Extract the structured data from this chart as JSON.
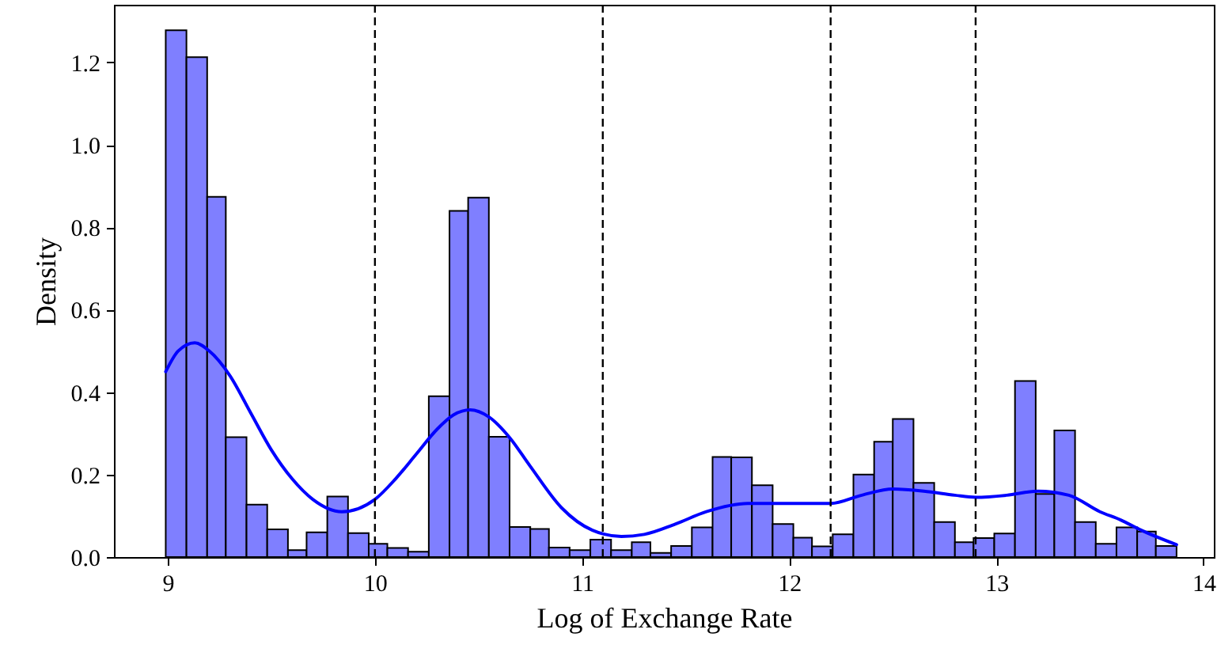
{
  "chart_data": {
    "type": "histogram",
    "xlabel": "Log of Exchange Rate",
    "ylabel": "Density",
    "color": "#7f7fff",
    "bins": [
      8.99,
      9.09,
      9.19,
      9.28,
      9.38,
      9.48,
      9.58,
      9.67,
      9.77,
      9.87,
      9.97,
      10.06,
      10.16,
      10.26,
      10.36,
      10.45,
      10.55,
      10.65,
      10.75,
      10.84,
      10.94,
      11.04,
      11.14,
      11.24,
      11.33,
      11.43,
      11.53,
      11.63,
      11.72,
      11.82,
      11.92,
      12.02,
      12.11,
      12.21,
      12.31,
      12.41,
      12.5,
      12.6,
      12.7,
      12.8,
      12.89,
      12.99,
      13.09,
      13.19,
      13.28,
      13.38,
      13.48,
      13.58,
      13.68,
      13.77,
      13.87
    ],
    "values": [
      1.278,
      1.213,
      0.874,
      0.291,
      0.127,
      0.067,
      0.017,
      0.06,
      0.147,
      0.058,
      0.032,
      0.022,
      0.013,
      0.39,
      0.84,
      0.872,
      0.292,
      0.073,
      0.068,
      0.023,
      0.017,
      0.042,
      0.017,
      0.036,
      0.01,
      0.027,
      0.072,
      0.243,
      0.242,
      0.174,
      0.08,
      0.047,
      0.026,
      0.055,
      0.2,
      0.28,
      0.335,
      0.18,
      0.085,
      0.036,
      0.046,
      0.057,
      0.427,
      0.153,
      0.307,
      0.085,
      0.032,
      0.072,
      0.062,
      0.027
    ],
    "series": [
      {
        "type": "line",
        "color": "#0000ff",
        "x": [
          8.99,
          9.05,
          9.13,
          9.2,
          9.3,
          9.4,
          9.5,
          9.6,
          9.7,
          9.84,
          10.0,
          10.1,
          10.2,
          10.3,
          10.38,
          10.46,
          10.55,
          10.65,
          10.75,
          10.9,
          11.05,
          11.19,
          11.3,
          11.45,
          11.6,
          11.8,
          12.0,
          12.2,
          12.35,
          12.5,
          12.65,
          12.8,
          12.9,
          13.05,
          13.2,
          13.35,
          13.5,
          13.6,
          13.7,
          13.87
        ],
        "values": [
          0.45,
          0.5,
          0.52,
          0.5,
          0.44,
          0.35,
          0.26,
          0.19,
          0.14,
          0.11,
          0.14,
          0.19,
          0.25,
          0.31,
          0.345,
          0.357,
          0.34,
          0.29,
          0.22,
          0.12,
          0.065,
          0.05,
          0.055,
          0.08,
          0.11,
          0.13,
          0.13,
          0.13,
          0.15,
          0.165,
          0.16,
          0.15,
          0.145,
          0.15,
          0.16,
          0.15,
          0.11,
          0.09,
          0.065,
          0.03
        ]
      }
    ],
    "ref_lines": [
      {
        "axis": "x",
        "value": 10.0,
        "color": "#000000",
        "line_style": "dashed"
      },
      {
        "axis": "x",
        "value": 11.1,
        "color": "#000000",
        "line_style": "dashed"
      },
      {
        "axis": "x",
        "value": 12.2,
        "color": "#000000",
        "line_style": "dashed"
      },
      {
        "axis": "x",
        "value": 12.9,
        "color": "#000000",
        "line_style": "dashed"
      }
    ],
    "xlim": [
      8.74,
      14.05
    ],
    "ylim": [
      0,
      1.34
    ],
    "xticks": [
      9,
      10,
      11,
      12,
      13,
      14
    ],
    "yticks": [
      {
        "value": 0,
        "label": "0.0"
      },
      0.2,
      0.4,
      0.6,
      0.8,
      {
        "value": 1,
        "label": "1.0"
      },
      1.2
    ],
    "grid": false
  }
}
